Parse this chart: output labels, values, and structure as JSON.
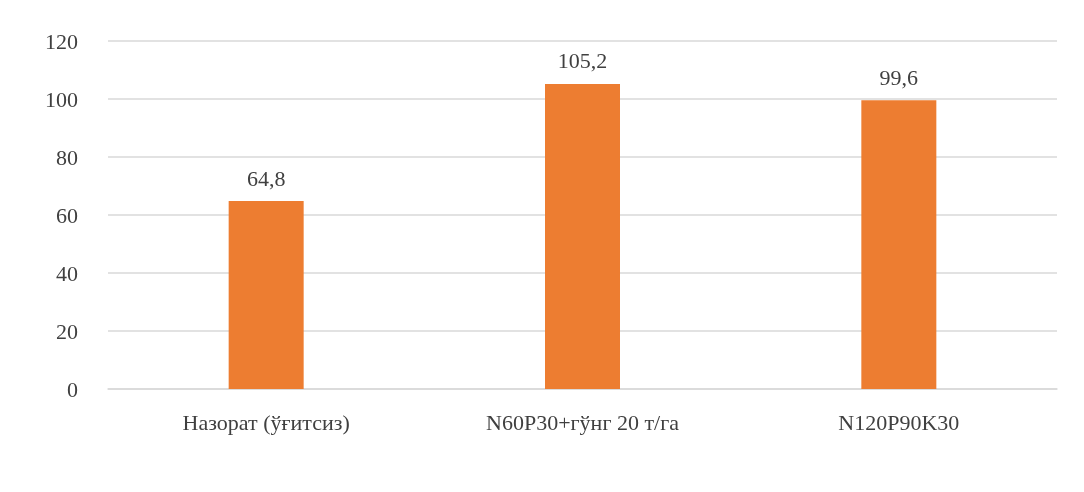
{
  "chart_data": {
    "type": "bar",
    "categories": [
      "Назорат (ўғитсиз)",
      "N60P30+гўнг 20 т/га",
      "N120P90K30"
    ],
    "values": [
      64.8,
      105.2,
      99.6
    ],
    "color": "#ed7d31",
    "ylim": [
      0,
      120
    ],
    "yticks": [
      0,
      20,
      40,
      60,
      80,
      100,
      120
    ],
    "grid": "y",
    "value_labels": [
      "64,8",
      "105,2",
      "99,6"
    ]
  }
}
